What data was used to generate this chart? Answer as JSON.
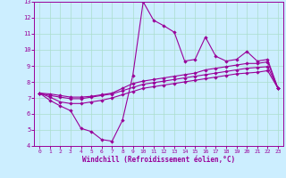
{
  "xlabel": "Windchill (Refroidissement éolien,°C)",
  "bg_color": "#cceeff",
  "line_color": "#990099",
  "grid_color": "#aaddcc",
  "xlim": [
    -0.5,
    23.5
  ],
  "ylim": [
    4,
    13
  ],
  "xticks": [
    0,
    1,
    2,
    3,
    4,
    5,
    6,
    7,
    8,
    9,
    10,
    11,
    12,
    13,
    14,
    15,
    16,
    17,
    18,
    19,
    20,
    21,
    22,
    23
  ],
  "yticks": [
    4,
    5,
    6,
    7,
    8,
    9,
    10,
    11,
    12,
    13
  ],
  "line1_x": [
    0,
    1,
    2,
    3,
    4,
    5,
    6,
    7,
    8,
    9,
    10,
    11,
    12,
    13,
    14,
    15,
    16,
    17,
    18,
    19,
    20,
    21,
    22,
    23
  ],
  "line1_y": [
    7.3,
    6.85,
    6.5,
    6.2,
    5.1,
    4.9,
    4.4,
    4.3,
    5.6,
    8.4,
    13.0,
    11.85,
    11.5,
    11.1,
    9.3,
    9.4,
    10.8,
    9.6,
    9.3,
    9.4,
    9.9,
    9.3,
    9.4,
    7.6
  ],
  "line2_x": [
    0,
    1,
    2,
    3,
    4,
    5,
    6,
    7,
    8,
    9,
    10,
    11,
    12,
    13,
    14,
    15,
    16,
    17,
    18,
    19,
    20,
    21,
    22,
    23
  ],
  "line2_y": [
    7.3,
    7.05,
    6.75,
    6.65,
    6.65,
    6.75,
    6.85,
    7.0,
    7.2,
    7.4,
    7.6,
    7.7,
    7.8,
    7.9,
    8.0,
    8.1,
    8.2,
    8.3,
    8.4,
    8.5,
    8.55,
    8.6,
    8.7,
    7.6
  ],
  "line3_x": [
    0,
    1,
    2,
    3,
    4,
    5,
    6,
    7,
    8,
    9,
    10,
    11,
    12,
    13,
    14,
    15,
    16,
    17,
    18,
    19,
    20,
    21,
    22,
    23
  ],
  "line3_y": [
    7.3,
    7.15,
    7.05,
    6.95,
    6.95,
    7.05,
    7.15,
    7.25,
    7.45,
    7.65,
    7.85,
    7.95,
    8.05,
    8.15,
    8.25,
    8.35,
    8.45,
    8.55,
    8.65,
    8.75,
    8.85,
    8.9,
    8.95,
    7.6
  ],
  "line4_x": [
    0,
    1,
    2,
    3,
    4,
    5,
    6,
    7,
    8,
    9,
    10,
    11,
    12,
    13,
    14,
    15,
    16,
    17,
    18,
    19,
    20,
    21,
    22,
    23
  ],
  "line4_y": [
    7.3,
    7.25,
    7.15,
    7.05,
    7.05,
    7.1,
    7.2,
    7.3,
    7.6,
    7.9,
    8.05,
    8.15,
    8.25,
    8.35,
    8.45,
    8.55,
    8.75,
    8.85,
    8.95,
    9.05,
    9.15,
    9.15,
    9.25,
    7.6
  ]
}
